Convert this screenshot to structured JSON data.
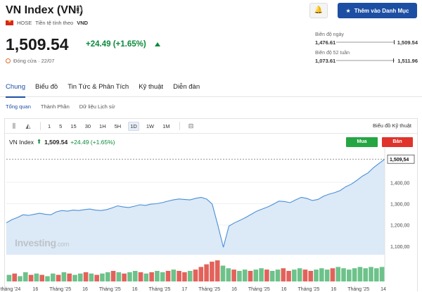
{
  "header": {
    "title": "VN Index (VNI)",
    "exchange": "HOSE",
    "currency_label": "Tiền tệ tính theo",
    "currency": "VND",
    "watchlist_button": "Thêm vào Danh Mục"
  },
  "quote": {
    "price": "1,509.54",
    "change": "+24.49 (+1.65%)",
    "status": "Đóng cửa · 22/07"
  },
  "ranges": {
    "day_label": "Biên độ ngày",
    "day_low": "1,476.61",
    "day_high": "1,509.54",
    "week52_label": "Biên độ 52 tuần",
    "week52_low": "1,073.61",
    "week52_high": "1,511.96"
  },
  "tabs": [
    "Chung",
    "Biểu đồ",
    "Tin Tức & Phân Tích",
    "Kỹ thuật",
    "Diễn đàn"
  ],
  "subtabs": [
    "Tổng quan",
    "Thành Phần",
    "Dữ liệu Lịch sử"
  ],
  "toolbar": {
    "intervals": [
      "1",
      "5",
      "15",
      "30",
      "1H",
      "5H",
      "1D",
      "1W",
      "1M"
    ],
    "active_interval": "1D",
    "tech_chart_link": "Biểu đồ Kỹ thuật"
  },
  "legend": {
    "name": "VN Index",
    "price": "1,509.54",
    "change": "+24.49 (+1.65%)"
  },
  "trade": {
    "buy": "Mua",
    "sell": "Bán"
  },
  "watermark": {
    "brand": "Investing",
    "suffix": ".com"
  },
  "chart_data": {
    "type": "area",
    "y_ticks": [
      "1,400,00",
      "1,300,00",
      "1,200,00",
      "1,100,00"
    ],
    "y_tick_values": [
      1400,
      1300,
      1200,
      1100
    ],
    "ylim": [
      1060,
      1530
    ],
    "last_price_label": "1,509,54",
    "x_tick_labels": [
      "tháng '24",
      "16",
      "Tháng '25",
      "16",
      "Tháng '25",
      "16",
      "Tháng '25",
      "17",
      "Tháng '25",
      "16",
      "Tháng '25",
      "16",
      "Tháng '25",
      "16",
      "Tháng '25",
      "14"
    ],
    "series": [
      {
        "values": [
          1210,
          1225,
          1235,
          1248,
          1245,
          1250,
          1255,
          1250,
          1248,
          1262,
          1268,
          1265,
          1270,
          1268,
          1272,
          1275,
          1270,
          1268,
          1272,
          1280,
          1290,
          1285,
          1282,
          1288,
          1295,
          1292,
          1298,
          1300,
          1305,
          1312,
          1318,
          1322,
          1320,
          1318,
          1325,
          1330,
          1322,
          1298,
          1200,
          1095,
          1195,
          1210,
          1222,
          1235,
          1250,
          1265,
          1275,
          1285,
          1298,
          1312,
          1310,
          1305,
          1318,
          1330,
          1325,
          1315,
          1320,
          1335,
          1345,
          1352,
          1362,
          1380,
          1392,
          1410,
          1430,
          1445,
          1470,
          1490,
          1509.54
        ]
      }
    ],
    "volume": [
      5,
      6,
      4,
      7,
      5,
      6,
      5,
      4,
      6,
      5,
      7,
      6,
      5,
      6,
      7,
      6,
      5,
      6,
      7,
      8,
      7,
      6,
      7,
      8,
      7,
      6,
      7,
      8,
      7,
      8,
      9,
      8,
      7,
      8,
      9,
      11,
      13,
      15,
      16,
      12,
      10,
      9,
      8,
      9,
      8,
      9,
      10,
      9,
      8,
      9,
      10,
      8,
      9,
      10,
      9,
      8,
      9,
      10,
      9,
      10,
      11,
      10,
      9,
      10,
      11,
      10,
      11,
      10,
      11
    ],
    "volume_up": [
      true,
      false,
      true,
      true,
      false,
      true,
      false,
      true,
      true,
      false,
      true,
      false,
      true,
      true,
      false,
      true,
      false,
      true,
      true,
      false,
      true,
      false,
      true,
      true,
      false,
      true,
      false,
      true,
      true,
      false,
      true,
      false,
      false,
      true,
      false,
      false,
      false,
      false,
      false,
      true,
      true,
      false,
      true,
      true,
      false,
      true,
      true,
      false,
      true,
      true,
      false,
      false,
      true,
      true,
      false,
      false,
      true,
      true,
      true,
      false,
      true,
      true,
      true,
      true,
      true,
      true,
      true,
      true,
      true
    ]
  }
}
